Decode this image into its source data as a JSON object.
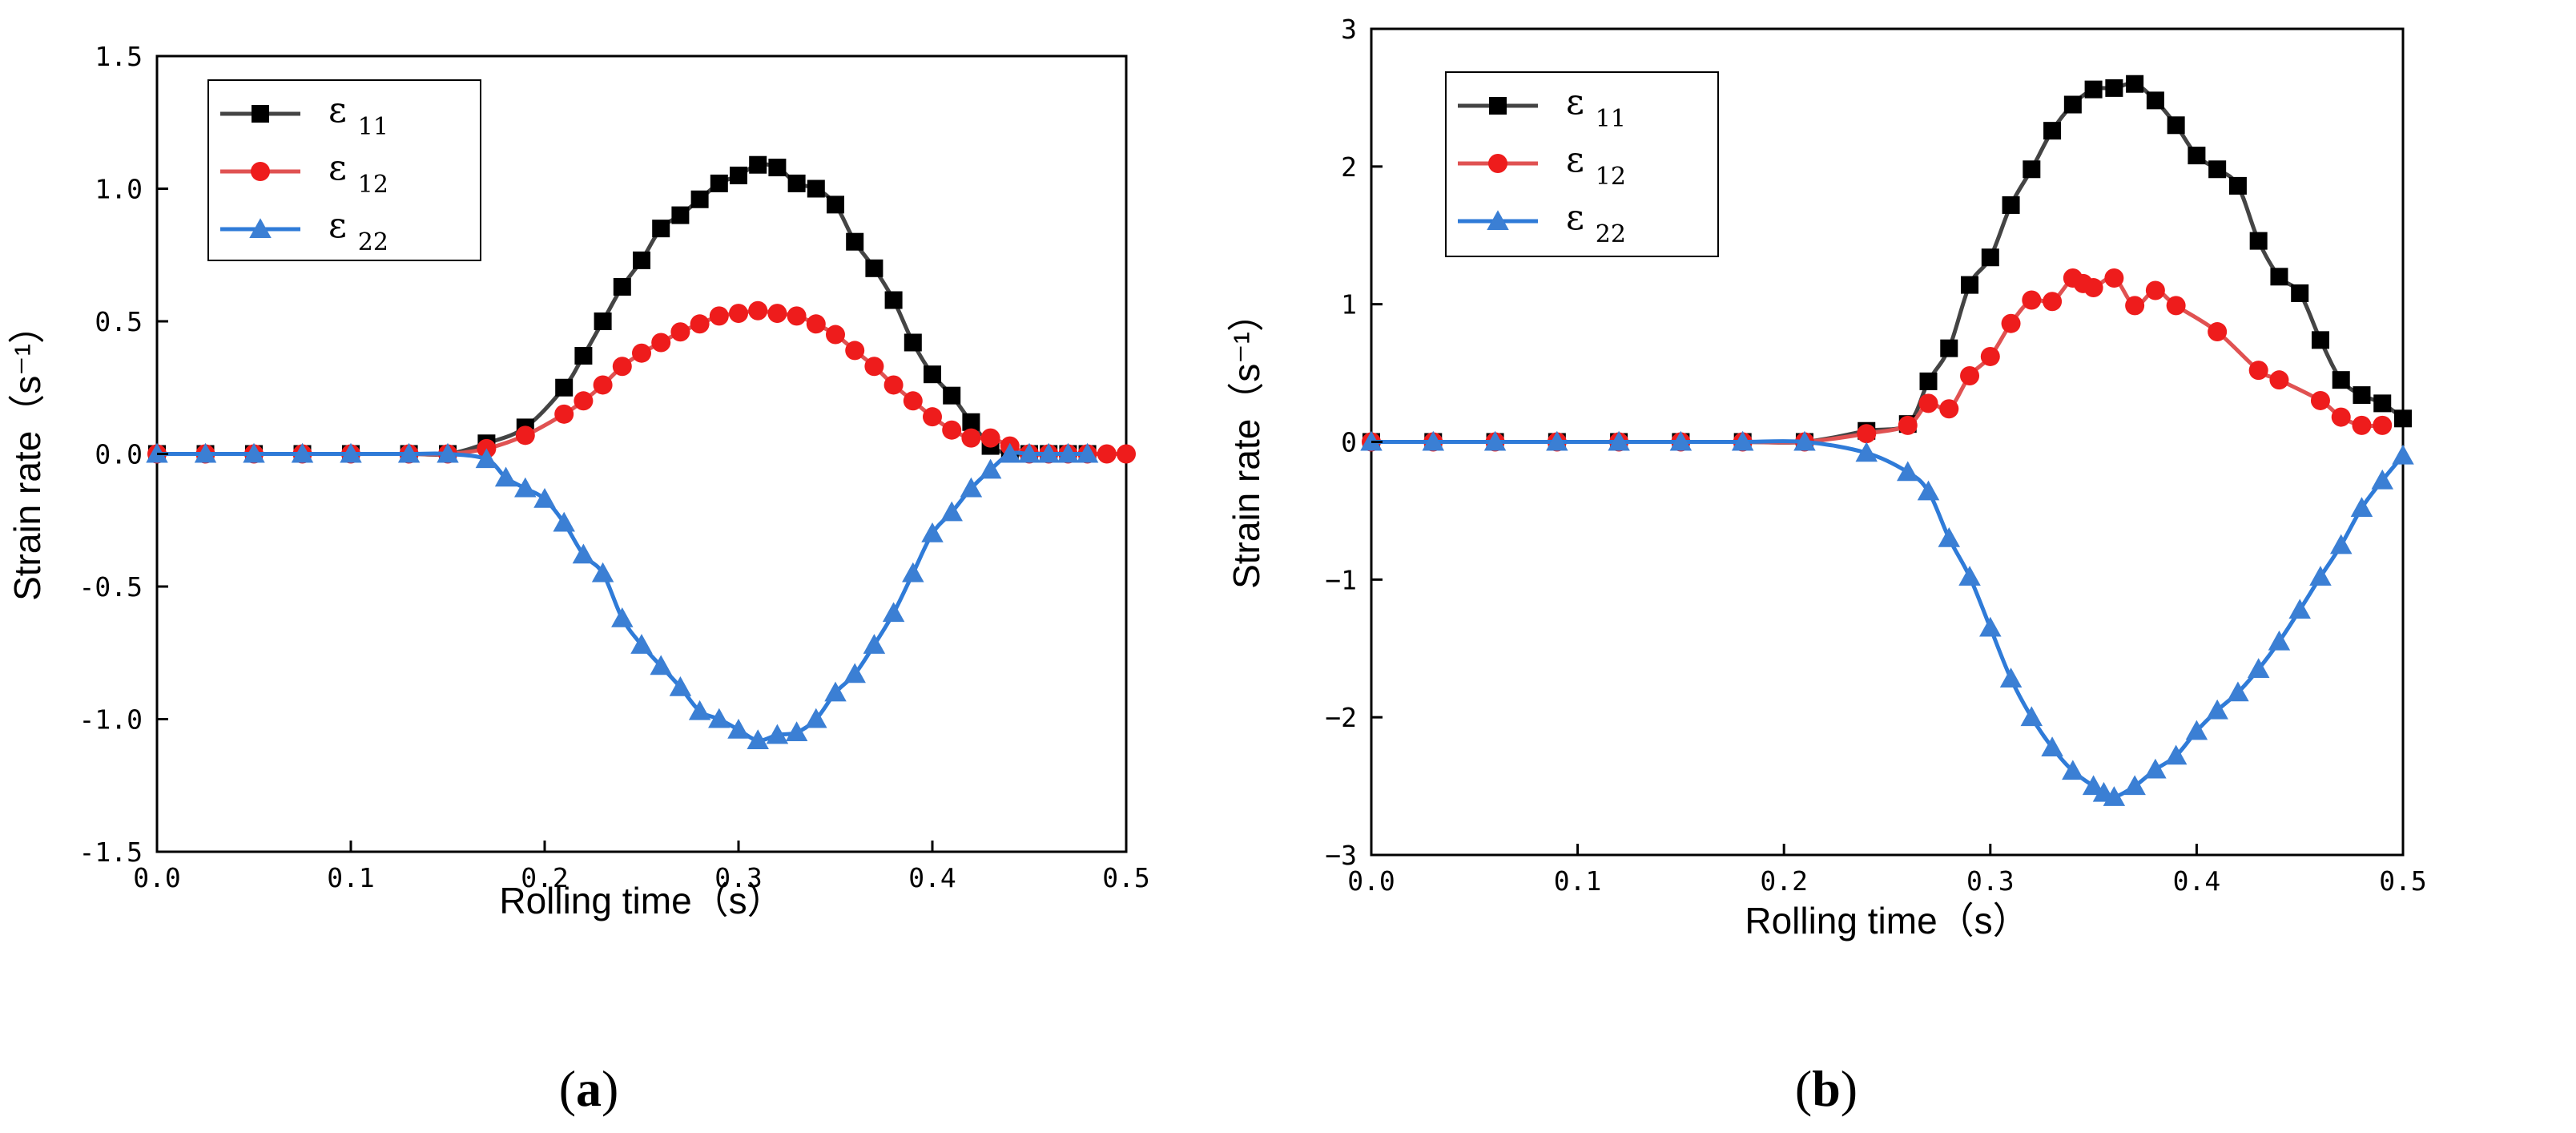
{
  "colors": {
    "eps11": "#000000",
    "eps12": "#ee1c1c",
    "eps22": "#3b7fd4",
    "line11": "#444444",
    "line12": "#e05252",
    "line22": "#2f7bd8"
  },
  "chart_data": [
    {
      "type": "line",
      "caption": {
        "open": "(",
        "letter": "a",
        "close": ")"
      },
      "xlabel": "Rolling time（s）",
      "ylabel": "Strain rate（s⁻¹）",
      "xlim": [
        0,
        0.5
      ],
      "ylim": [
        -1.5,
        1.5
      ],
      "xticks": [
        0,
        0.1,
        0.2,
        0.3,
        0.4,
        0.5
      ],
      "xtick_labels": [
        "0.0",
        "0.1",
        "0.2",
        "0.3",
        "0.4",
        "0.5"
      ],
      "yticks": [
        -1.5,
        -1.0,
        -0.5,
        0.0,
        0.5,
        1.0,
        1.5
      ],
      "ytick_labels": [
        "-1.5",
        "-1.0",
        "-0.5",
        "0.0",
        "0.5",
        "1.0",
        "1.5"
      ],
      "legend_position": "top-left",
      "series": [
        {
          "name": "ε",
          "sub": "11",
          "marker": "square",
          "x": [
            0,
            0.025,
            0.05,
            0.075,
            0.1,
            0.13,
            0.15,
            0.17,
            0.19,
            0.21,
            0.22,
            0.23,
            0.24,
            0.25,
            0.26,
            0.27,
            0.28,
            0.29,
            0.3,
            0.31,
            0.32,
            0.33,
            0.34,
            0.35,
            0.36,
            0.37,
            0.38,
            0.39,
            0.4,
            0.41,
            0.42,
            0.43,
            0.44,
            0.45,
            0.46,
            0.47,
            0.48
          ],
          "values": [
            0,
            0,
            0,
            0,
            0,
            0,
            0,
            0.04,
            0.1,
            0.25,
            0.37,
            0.5,
            0.63,
            0.73,
            0.85,
            0.9,
            0.96,
            1.02,
            1.05,
            1.09,
            1.08,
            1.02,
            1.0,
            0.94,
            0.8,
            0.7,
            0.58,
            0.42,
            0.3,
            0.22,
            0.12,
            0.03,
            0,
            0,
            0,
            0,
            0
          ]
        },
        {
          "name": "ε",
          "sub": "12",
          "marker": "circle",
          "x": [
            0,
            0.025,
            0.05,
            0.075,
            0.1,
            0.13,
            0.15,
            0.17,
            0.19,
            0.21,
            0.22,
            0.23,
            0.24,
            0.25,
            0.26,
            0.27,
            0.28,
            0.29,
            0.3,
            0.31,
            0.32,
            0.33,
            0.34,
            0.35,
            0.36,
            0.37,
            0.38,
            0.39,
            0.4,
            0.41,
            0.42,
            0.43,
            0.44,
            0.45,
            0.46,
            0.47,
            0.48,
            0.49,
            0.5
          ],
          "values": [
            0,
            0,
            0,
            0,
            0,
            0,
            0,
            0.02,
            0.07,
            0.15,
            0.2,
            0.26,
            0.33,
            0.38,
            0.42,
            0.46,
            0.49,
            0.52,
            0.53,
            0.54,
            0.53,
            0.52,
            0.49,
            0.45,
            0.39,
            0.33,
            0.26,
            0.2,
            0.14,
            0.09,
            0.06,
            0.06,
            0.03,
            0,
            0,
            0,
            0,
            0,
            0
          ]
        },
        {
          "name": "ε",
          "sub": "22",
          "marker": "triangle",
          "x": [
            0,
            0.025,
            0.05,
            0.075,
            0.1,
            0.13,
            0.15,
            0.17,
            0.18,
            0.19,
            0.2,
            0.21,
            0.22,
            0.23,
            0.24,
            0.25,
            0.26,
            0.27,
            0.28,
            0.29,
            0.3,
            0.31,
            0.32,
            0.33,
            0.34,
            0.35,
            0.36,
            0.37,
            0.38,
            0.39,
            0.4,
            0.41,
            0.42,
            0.43,
            0.44,
            0.45,
            0.46,
            0.47,
            0.48
          ],
          "values": [
            0,
            0,
            0,
            0,
            0,
            0,
            0,
            -0.02,
            -0.09,
            -0.13,
            -0.17,
            -0.26,
            -0.38,
            -0.45,
            -0.62,
            -0.72,
            -0.8,
            -0.88,
            -0.97,
            -1.0,
            -1.04,
            -1.08,
            -1.06,
            -1.05,
            -1.0,
            -0.9,
            -0.83,
            -0.72,
            -0.6,
            -0.45,
            -0.3,
            -0.22,
            -0.13,
            -0.06,
            0,
            0,
            0,
            0,
            0
          ]
        }
      ]
    },
    {
      "type": "line",
      "caption": {
        "open": "(",
        "letter": "b",
        "close": ")"
      },
      "xlabel": "Rolling time（s）",
      "ylabel": "Strain rate（s⁻¹）",
      "xlim": [
        0,
        0.5
      ],
      "ylim": [
        -3,
        3
      ],
      "xticks": [
        0,
        0.1,
        0.2,
        0.3,
        0.4,
        0.5
      ],
      "xtick_labels": [
        "0.0",
        "0.1",
        "0.2",
        "0.3",
        "0.4",
        "0.5"
      ],
      "yticks": [
        -3,
        -2,
        -1,
        0,
        1,
        2,
        3
      ],
      "ytick_labels": [
        "−3",
        "−2",
        "−1",
        "0",
        "1",
        "2",
        "3"
      ],
      "legend_position": "top-left",
      "series": [
        {
          "name": "ε",
          "sub": "11",
          "marker": "square",
          "x": [
            0,
            0.03,
            0.06,
            0.09,
            0.12,
            0.15,
            0.18,
            0.21,
            0.24,
            0.26,
            0.27,
            0.28,
            0.29,
            0.3,
            0.31,
            0.32,
            0.33,
            0.34,
            0.35,
            0.36,
            0.37,
            0.38,
            0.39,
            0.4,
            0.41,
            0.42,
            0.43,
            0.44,
            0.45,
            0.46,
            0.47,
            0.48,
            0.49,
            0.5
          ],
          "values": [
            0,
            0,
            0,
            0,
            0,
            0,
            0,
            0,
            0.08,
            0.13,
            0.44,
            0.68,
            1.14,
            1.34,
            1.72,
            1.98,
            2.26,
            2.45,
            2.56,
            2.57,
            2.6,
            2.48,
            2.3,
            2.08,
            1.98,
            1.86,
            1.46,
            1.2,
            1.08,
            0.74,
            0.45,
            0.34,
            0.28,
            0.17
          ]
        },
        {
          "name": "ε",
          "sub": "12",
          "marker": "circle",
          "x": [
            0,
            0.03,
            0.06,
            0.09,
            0.12,
            0.15,
            0.18,
            0.21,
            0.24,
            0.26,
            0.27,
            0.28,
            0.29,
            0.3,
            0.31,
            0.32,
            0.33,
            0.34,
            0.345,
            0.35,
            0.36,
            0.37,
            0.38,
            0.39,
            0.41,
            0.43,
            0.44,
            0.46,
            0.47,
            0.48,
            0.49
          ],
          "values": [
            0,
            0,
            0,
            0,
            0,
            0,
            0,
            0,
            0.06,
            0.12,
            0.28,
            0.24,
            0.48,
            0.62,
            0.86,
            1.03,
            1.02,
            1.19,
            1.15,
            1.12,
            1.19,
            0.99,
            1.1,
            0.99,
            0.8,
            0.52,
            0.45,
            0.3,
            0.18,
            0.12,
            0.12
          ]
        },
        {
          "name": "ε",
          "sub": "22",
          "marker": "triangle",
          "x": [
            0,
            0.03,
            0.06,
            0.09,
            0.12,
            0.15,
            0.18,
            0.21,
            0.24,
            0.26,
            0.27,
            0.28,
            0.29,
            0.3,
            0.31,
            0.32,
            0.33,
            0.34,
            0.35,
            0.355,
            0.36,
            0.37,
            0.38,
            0.39,
            0.4,
            0.41,
            0.42,
            0.43,
            0.44,
            0.45,
            0.46,
            0.47,
            0.48,
            0.49,
            0.5
          ],
          "values": [
            0,
            0,
            0,
            0,
            0,
            0,
            0,
            0,
            -0.08,
            -0.22,
            -0.36,
            -0.7,
            -0.98,
            -1.35,
            -1.72,
            -2.0,
            -2.22,
            -2.39,
            -2.5,
            -2.55,
            -2.58,
            -2.5,
            -2.38,
            -2.28,
            -2.1,
            -1.95,
            -1.82,
            -1.65,
            -1.45,
            -1.22,
            -0.98,
            -0.75,
            -0.48,
            -0.28,
            -0.1
          ]
        }
      ]
    }
  ]
}
